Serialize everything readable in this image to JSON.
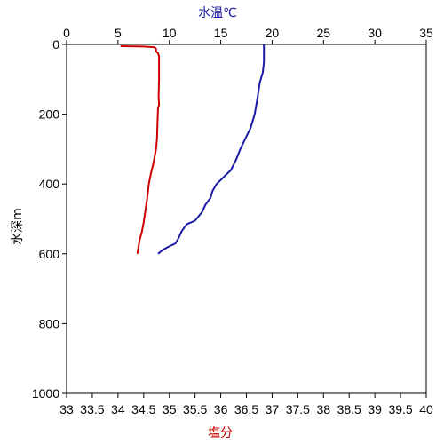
{
  "chart_data": {
    "type": "line",
    "grid": false,
    "legend": "none",
    "temperature_axis": {
      "label": "水温℃",
      "position": "top",
      "color": "#1a1aa6",
      "range": [
        0,
        35
      ],
      "ticks": [
        0,
        5,
        10,
        15,
        20,
        25,
        30,
        35
      ]
    },
    "salinity_axis": {
      "label": "塩分",
      "position": "bottom",
      "color": "#cc0000",
      "range": [
        33,
        40
      ],
      "ticks": [
        33,
        33.5,
        34,
        34.5,
        35,
        35.5,
        36,
        36.5,
        37,
        37.5,
        38,
        38.5,
        39,
        39.5,
        40
      ],
      "tick_labels": [
        "33",
        "33.5",
        "34",
        "34.5",
        "35",
        "35.5",
        "36",
        "36.5",
        "37",
        "37.5",
        "38",
        "38.5",
        "39",
        "39.5",
        "40"
      ]
    },
    "depth_axis": {
      "label": "水深m",
      "position": "left",
      "inverted": true,
      "range": [
        0,
        1000
      ],
      "ticks": [
        0,
        200,
        400,
        600,
        800,
        1000
      ]
    },
    "series": [
      {
        "variable": "temperature",
        "color": "#1a1aa6",
        "points": [
          [
            19.2,
            0
          ],
          [
            19.2,
            10
          ],
          [
            19.2,
            50
          ],
          [
            19.1,
            80
          ],
          [
            18.8,
            110
          ],
          [
            18.6,
            150
          ],
          [
            18.3,
            200
          ],
          [
            17.9,
            240
          ],
          [
            17.4,
            270
          ],
          [
            16.9,
            300
          ],
          [
            16.5,
            330
          ],
          [
            16.0,
            360
          ],
          [
            15.3,
            380
          ],
          [
            14.6,
            400
          ],
          [
            14.2,
            420
          ],
          [
            14.0,
            440
          ],
          [
            13.5,
            460
          ],
          [
            13.2,
            480
          ],
          [
            12.5,
            505
          ],
          [
            11.7,
            515
          ],
          [
            11.2,
            535
          ],
          [
            10.9,
            555
          ],
          [
            10.6,
            570
          ],
          [
            9.9,
            580
          ],
          [
            9.3,
            590
          ],
          [
            8.9,
            600
          ]
        ]
      },
      {
        "variable": "salinity",
        "color": "#cc0000",
        "points": [
          [
            34.05,
            5
          ],
          [
            34.5,
            6
          ],
          [
            34.7,
            8
          ],
          [
            34.74,
            12
          ],
          [
            34.74,
            20
          ],
          [
            34.78,
            25
          ],
          [
            34.8,
            35
          ],
          [
            34.8,
            60
          ],
          [
            34.8,
            100
          ],
          [
            34.79,
            150
          ],
          [
            34.8,
            175
          ],
          [
            34.78,
            180
          ],
          [
            34.77,
            220
          ],
          [
            34.76,
            270
          ],
          [
            34.74,
            300
          ],
          [
            34.69,
            340
          ],
          [
            34.64,
            370
          ],
          [
            34.6,
            400
          ],
          [
            34.57,
            440
          ],
          [
            34.54,
            470
          ],
          [
            34.5,
            510
          ],
          [
            34.46,
            540
          ],
          [
            34.42,
            560
          ],
          [
            34.4,
            580
          ],
          [
            34.38,
            600
          ]
        ]
      }
    ]
  }
}
